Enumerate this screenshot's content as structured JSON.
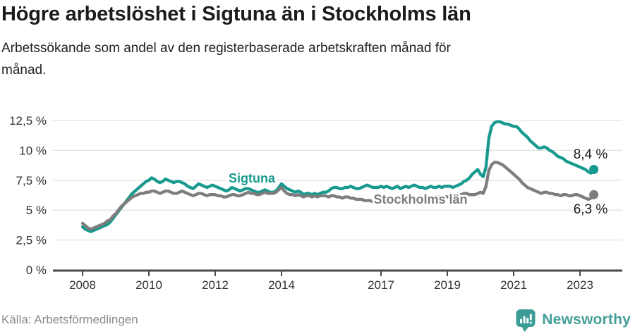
{
  "header": {
    "title": "Högre arbetslöshet i Sigtuna än i Stockholms län",
    "subtitle_line1": "Arbetssökande som andel av den registerbaserade arbetskraften månad för",
    "subtitle_line2": "månad."
  },
  "chart_data": {
    "type": "line",
    "unit": "%",
    "frequency": "monthly",
    "x_start": "2008-01",
    "x_end": "2023-06",
    "ylim": [
      0,
      12.5
    ],
    "grid": true,
    "legend_position": "inline-labels",
    "y_ticks": [
      {
        "value": 0,
        "label": "0 %"
      },
      {
        "value": 2.5,
        "label": "2,5 %"
      },
      {
        "value": 5,
        "label": "5 %"
      },
      {
        "value": 7.5,
        "label": "7,5 %"
      },
      {
        "value": 10,
        "label": "10 %"
      },
      {
        "value": 12.5,
        "label": "12,5 %"
      }
    ],
    "x_ticks": [
      {
        "year": 2008,
        "label": "2008"
      },
      {
        "year": 2010,
        "label": "2010"
      },
      {
        "year": 2012,
        "label": "2012"
      },
      {
        "year": 2014,
        "label": "2014"
      },
      {
        "year": 2017,
        "label": "2017"
      },
      {
        "year": 2019,
        "label": "2019"
      },
      {
        "year": 2021,
        "label": "2021"
      },
      {
        "year": 2023,
        "label": "2023"
      }
    ],
    "series": [
      {
        "name": "Sigtuna",
        "color": "#199a8e",
        "end_label": "8,4 %",
        "end_value": 8.4,
        "values": [
          3.6,
          3.4,
          3.3,
          3.2,
          3.3,
          3.4,
          3.5,
          3.6,
          3.7,
          3.8,
          4.0,
          4.3,
          4.6,
          4.9,
          5.2,
          5.5,
          5.8,
          6.1,
          6.4,
          6.6,
          6.8,
          7.0,
          7.2,
          7.4,
          7.5,
          7.7,
          7.6,
          7.4,
          7.3,
          7.4,
          7.6,
          7.5,
          7.4,
          7.3,
          7.4,
          7.4,
          7.3,
          7.2,
          7.0,
          6.9,
          6.8,
          7.0,
          7.2,
          7.1,
          7.0,
          6.9,
          7.0,
          7.1,
          7.0,
          6.9,
          6.8,
          6.7,
          6.6,
          6.7,
          6.9,
          6.8,
          6.7,
          6.6,
          6.7,
          6.8,
          6.8,
          6.7,
          6.6,
          6.5,
          6.5,
          6.6,
          6.7,
          6.6,
          6.5,
          6.5,
          6.6,
          6.9,
          7.2,
          7.0,
          6.8,
          6.7,
          6.6,
          6.5,
          6.6,
          6.5,
          6.3,
          6.4,
          6.4,
          6.3,
          6.4,
          6.3,
          6.4,
          6.5,
          6.5,
          6.6,
          6.8,
          6.9,
          6.9,
          6.8,
          6.8,
          6.9,
          6.9,
          7.0,
          6.9,
          6.8,
          6.8,
          6.9,
          7.0,
          7.1,
          7.0,
          6.9,
          6.9,
          6.9,
          7.0,
          6.9,
          7.0,
          6.9,
          6.8,
          6.9,
          7.0,
          6.8,
          6.9,
          7.0,
          6.9,
          7.0,
          7.1,
          7.0,
          6.9,
          6.9,
          6.8,
          6.9,
          7.0,
          6.9,
          6.9,
          7.0,
          6.9,
          7.0,
          7.0,
          7.0,
          6.9,
          7.0,
          7.1,
          7.2,
          7.4,
          7.5,
          7.7,
          8.0,
          8.2,
          8.4,
          8.0,
          7.8,
          8.6,
          11.0,
          12.0,
          12.3,
          12.4,
          12.4,
          12.3,
          12.2,
          12.2,
          12.1,
          12.0,
          12.0,
          11.8,
          11.5,
          11.3,
          11.1,
          10.8,
          10.6,
          10.4,
          10.2,
          10.2,
          10.3,
          10.2,
          10.0,
          9.9,
          9.7,
          9.5,
          9.4,
          9.3,
          9.1,
          9.0,
          8.9,
          8.8,
          8.7,
          8.6,
          8.5,
          8.4,
          8.2,
          8.1,
          8.4
        ]
      },
      {
        "name": "Stockholms län",
        "color": "#7d7d7d",
        "end_label": "6,3 %",
        "end_value": 6.3,
        "values": [
          3.9,
          3.7,
          3.5,
          3.4,
          3.5,
          3.6,
          3.7,
          3.8,
          3.9,
          4.1,
          4.2,
          4.5,
          4.7,
          5.0,
          5.3,
          5.5,
          5.7,
          5.9,
          6.1,
          6.2,
          6.3,
          6.4,
          6.4,
          6.5,
          6.5,
          6.6,
          6.6,
          6.5,
          6.4,
          6.5,
          6.6,
          6.6,
          6.5,
          6.4,
          6.4,
          6.5,
          6.6,
          6.5,
          6.4,
          6.3,
          6.2,
          6.3,
          6.4,
          6.4,
          6.3,
          6.2,
          6.3,
          6.3,
          6.3,
          6.2,
          6.2,
          6.1,
          6.1,
          6.2,
          6.3,
          6.3,
          6.2,
          6.2,
          6.3,
          6.4,
          6.5,
          6.4,
          6.4,
          6.3,
          6.3,
          6.4,
          6.5,
          6.4,
          6.4,
          6.4,
          6.5,
          6.7,
          6.9,
          6.6,
          6.4,
          6.3,
          6.3,
          6.2,
          6.3,
          6.2,
          6.1,
          6.2,
          6.2,
          6.1,
          6.2,
          6.1,
          6.2,
          6.2,
          6.2,
          6.1,
          6.2,
          6.2,
          6.1,
          6.1,
          6.0,
          6.1,
          6.1,
          6.0,
          6.0,
          5.9,
          5.9,
          5.9,
          5.8,
          5.8,
          5.8,
          5.7,
          5.7,
          5.7,
          5.7,
          5.7,
          5.8,
          5.8,
          5.8,
          5.9,
          5.9,
          5.9,
          6.0,
          6.0,
          6.0,
          6.0,
          6.0,
          6.0,
          6.0,
          5.9,
          5.9,
          6.0,
          6.0,
          6.0,
          6.1,
          6.1,
          6.1,
          6.1,
          6.1,
          6.1,
          6.1,
          6.1,
          6.2,
          6.3,
          6.4,
          6.4,
          6.3,
          6.3,
          6.3,
          6.4,
          6.5,
          6.4,
          7.0,
          8.3,
          8.8,
          9.0,
          9.0,
          8.9,
          8.8,
          8.6,
          8.4,
          8.2,
          8.0,
          7.8,
          7.6,
          7.3,
          7.1,
          6.9,
          6.8,
          6.7,
          6.6,
          6.5,
          6.4,
          6.5,
          6.5,
          6.4,
          6.4,
          6.3,
          6.3,
          6.2,
          6.3,
          6.3,
          6.2,
          6.2,
          6.3,
          6.3,
          6.2,
          6.1,
          6.0,
          5.9,
          6.0,
          6.3
        ]
      }
    ]
  },
  "footer": {
    "source": "Källa: Arbetsförmedlingen",
    "brand": "Newsworthy",
    "brand_color": "#46a09b"
  }
}
